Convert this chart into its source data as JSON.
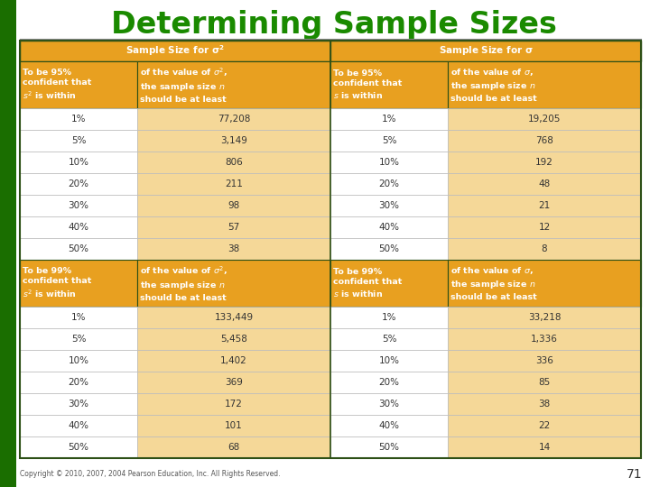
{
  "title": "Determining Sample Sizes",
  "title_color": "#1a8a00",
  "background_color": "#ffffff",
  "green_bar_color": "#1a6e00",
  "orange_header_color": "#E8A020",
  "orange_cell_color": "#F5D898",
  "white_cell_color": "#FFFFFF",
  "header_text_color": "#FFFFFF",
  "data_text_color": "#333333",
  "col1_header": "Sample Size for σ²",
  "col2_header": "Sample Size for σ",
  "data_95": [
    [
      "1%",
      "77,208",
      "1%",
      "19,205"
    ],
    [
      "5%",
      "3,149",
      "5%",
      "768"
    ],
    [
      "10%",
      "806",
      "10%",
      "192"
    ],
    [
      "20%",
      "211",
      "20%",
      "48"
    ],
    [
      "30%",
      "98",
      "30%",
      "21"
    ],
    [
      "40%",
      "57",
      "40%",
      "12"
    ],
    [
      "50%",
      "38",
      "50%",
      "8"
    ]
  ],
  "data_99": [
    [
      "1%",
      "133,449",
      "1%",
      "33,218"
    ],
    [
      "5%",
      "5,458",
      "5%",
      "1,336"
    ],
    [
      "10%",
      "1,402",
      "10%",
      "336"
    ],
    [
      "20%",
      "369",
      "20%",
      "85"
    ],
    [
      "30%",
      "172",
      "30%",
      "38"
    ],
    [
      "40%",
      "101",
      "40%",
      "22"
    ],
    [
      "50%",
      "68",
      "50%",
      "14"
    ]
  ],
  "copyright": "Copyright © 2010, 2007, 2004 Pearson Education, Inc. All Rights Reserved.",
  "page_num": "71"
}
